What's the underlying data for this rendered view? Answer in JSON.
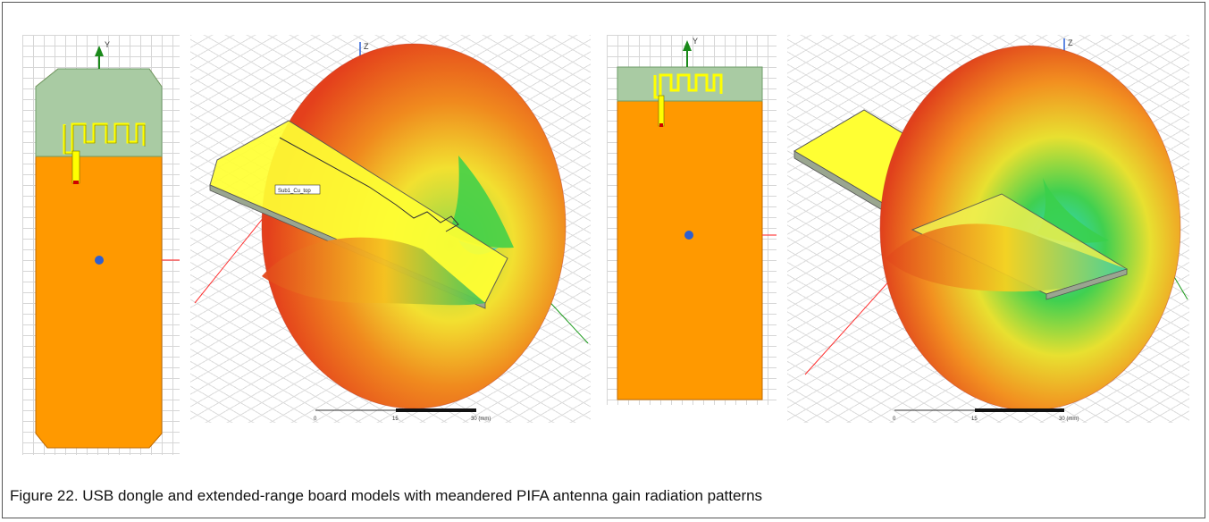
{
  "figure": {
    "caption": "Figure 22.  USB dongle and extended-range board models with meandered PIFA antenna gain radiation patterns"
  },
  "panels": [
    {
      "id": "usb-dongle-top-view",
      "axis_label": "Y"
    },
    {
      "id": "usb-dongle-3d-pattern",
      "axis_label": "Z",
      "board_label": "Sub1_Cu_top",
      "scale": {
        "ticks": [
          "0",
          "15",
          "30 (mm)"
        ]
      }
    },
    {
      "id": "extended-range-top-view",
      "axis_label": "Y"
    },
    {
      "id": "extended-range-3d-pattern",
      "axis_label": "Z",
      "scale": {
        "ticks": [
          "0",
          "15",
          "30 (mm)"
        ]
      }
    }
  ],
  "colors": {
    "board_orange": "#ff9900",
    "antenna_area": "#a9cba3",
    "trace_yellow": "#ffff00",
    "pattern_red": "#e8401c",
    "pattern_green": "#3ad04a",
    "pattern_cyan": "#30d8d8"
  }
}
